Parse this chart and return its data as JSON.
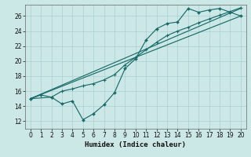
{
  "xlabel": "Humidex (Indice chaleur)",
  "ylabel": "",
  "xlim": [
    -0.5,
    20.5
  ],
  "ylim": [
    11.0,
    27.5
  ],
  "xticks": [
    0,
    1,
    2,
    3,
    4,
    5,
    6,
    7,
    8,
    9,
    10,
    11,
    12,
    13,
    14,
    15,
    16,
    17,
    18,
    19,
    20
  ],
  "yticks": [
    12,
    14,
    16,
    18,
    20,
    22,
    24,
    26
  ],
  "bg_color": "#cce8e6",
  "grid_color": "#aacfcd",
  "line_color": "#1a6b6b",
  "line1_x": [
    0,
    1,
    2,
    3,
    4,
    5,
    6,
    7,
    8,
    9,
    10,
    11,
    12,
    13,
    14,
    15,
    16,
    17,
    18,
    19,
    20
  ],
  "line1_y": [
    15.0,
    15.5,
    15.2,
    14.3,
    14.7,
    12.2,
    13.0,
    14.2,
    15.8,
    19.0,
    20.3,
    22.8,
    24.3,
    25.0,
    25.2,
    27.0,
    26.5,
    26.8,
    27.0,
    26.5,
    26.0
  ],
  "line2_x": [
    0,
    2,
    3,
    4,
    5,
    6,
    7,
    8,
    9,
    10,
    11,
    12,
    13,
    14,
    15,
    16,
    17,
    18,
    19,
    20
  ],
  "line2_y": [
    15.0,
    15.2,
    16.0,
    16.3,
    16.7,
    17.0,
    17.5,
    18.2,
    19.5,
    20.5,
    21.5,
    22.5,
    23.4,
    24.0,
    24.5,
    25.1,
    25.6,
    26.1,
    26.6,
    27.1
  ],
  "line3_x": [
    0,
    20
  ],
  "line3_y": [
    15.0,
    26.0
  ],
  "line4_x": [
    0,
    20
  ],
  "line4_y": [
    15.0,
    27.0
  ]
}
